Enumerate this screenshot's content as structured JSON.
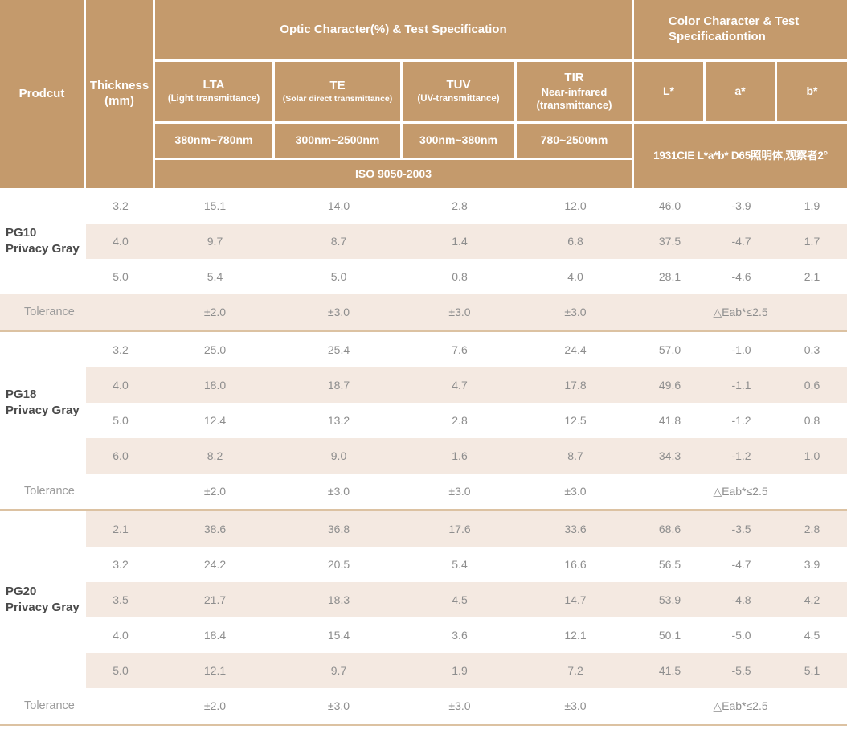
{
  "colors": {
    "header_bg": "#c49a6c",
    "row_shade": "#f4e9e1",
    "separator": "#dcc2a2",
    "header_text": "#ffffff",
    "value_text": "#8e8e8e",
    "product_text": "#4a4a4a"
  },
  "header": {
    "product_label": "Prodcut",
    "thickness_label": "Thickness\n(mm)",
    "optic_title": "Optic Character(%) & Test Specification",
    "color_title": "Color Character & Test\nSpecificationtion",
    "optic_columns": [
      {
        "abbr": "LTA",
        "caption": "(Light transmittance)",
        "range": "380nm~780nm"
      },
      {
        "abbr": "TE",
        "caption": "(Solar direct transmittance)",
        "range": "300nm~2500nm"
      },
      {
        "abbr": "TUV",
        "caption": "(UV-transmittance)",
        "range": "300nm~380nm"
      },
      {
        "abbr": "TIR",
        "caption": "Near-infrared\n(transmittance)",
        "range": "780~2500nm"
      }
    ],
    "lab_columns": [
      "L*",
      "a*",
      "b*"
    ],
    "iso_note": "ISO 9050-2003",
    "cie_note": "1931CIE L*a*b*  D65照明体,观察者2°"
  },
  "column_keys": [
    "thickness",
    "lta",
    "te",
    "tuv",
    "tir",
    "l_star",
    "a_star",
    "b_star"
  ],
  "groups": [
    {
      "product": "PG10\nPrivacy Gray",
      "rows": [
        [
          "3.2",
          "15.1",
          "14.0",
          "2.8",
          "12.0",
          "46.0",
          "-3.9",
          "1.9"
        ],
        [
          "4.0",
          "9.7",
          "8.7",
          "1.4",
          "6.8",
          "37.5",
          "-4.7",
          "1.7"
        ],
        [
          "5.0",
          "5.4",
          "5.0",
          "0.8",
          "4.0",
          "28.1",
          "-4.6",
          "2.1"
        ]
      ],
      "tolerance": {
        "label": "Tolerance",
        "lta": "±2.0",
        "te": "±3.0",
        "tuv": "±3.0",
        "tir": "±3.0",
        "lab": "△Eab*≤2.5"
      }
    },
    {
      "product": "PG18\nPrivacy Gray",
      "rows": [
        [
          "3.2",
          "25.0",
          "25.4",
          "7.6",
          "24.4",
          "57.0",
          "-1.0",
          "0.3"
        ],
        [
          "4.0",
          "18.0",
          "18.7",
          "4.7",
          "17.8",
          "49.6",
          "-1.1",
          "0.6"
        ],
        [
          "5.0",
          "12.4",
          "13.2",
          "2.8",
          "12.5",
          "41.8",
          "-1.2",
          "0.8"
        ],
        [
          "6.0",
          "8.2",
          "9.0",
          "1.6",
          "8.7",
          "34.3",
          "-1.2",
          "1.0"
        ]
      ],
      "tolerance": {
        "label": "Tolerance",
        "lta": "±2.0",
        "te": "±3.0",
        "tuv": "±3.0",
        "tir": "±3.0",
        "lab": "△Eab*≤2.5"
      }
    },
    {
      "product": "PG20\nPrivacy Gray",
      "rows": [
        [
          "2.1",
          "38.6",
          "36.8",
          "17.6",
          "33.6",
          "68.6",
          "-3.5",
          "2.8"
        ],
        [
          "3.2",
          "24.2",
          "20.5",
          "5.4",
          "16.6",
          "56.5",
          "-4.7",
          "3.9"
        ],
        [
          "3.5",
          "21.7",
          "18.3",
          "4.5",
          "14.7",
          "53.9",
          "-4.8",
          "4.2"
        ],
        [
          "4.0",
          "18.4",
          "15.4",
          "3.6",
          "12.1",
          "50.1",
          "-5.0",
          "4.5"
        ],
        [
          "5.0",
          "12.1",
          "9.7",
          "1.9",
          "7.2",
          "41.5",
          "-5.5",
          "5.1"
        ]
      ],
      "tolerance": {
        "label": "Tolerance",
        "lta": "±2.0",
        "te": "±3.0",
        "tuv": "±3.0",
        "tir": "±3.0",
        "lab": "△Eab*≤2.5"
      }
    }
  ]
}
